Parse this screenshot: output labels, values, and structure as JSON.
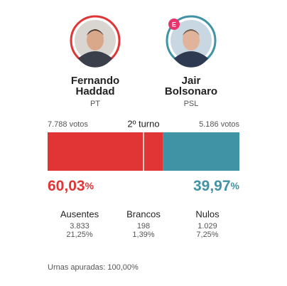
{
  "round": "2º turno",
  "share_unit": "%",
  "candidates": [
    {
      "name_lines": [
        "Fernando",
        "Haddad"
      ],
      "party": "PT",
      "votes": "7.788 votos",
      "share": 60.03,
      "share_label": "60,03",
      "color": "#e13535"
    },
    {
      "name_lines": [
        "Jair",
        "Bolsonaro"
      ],
      "party": "PSL",
      "votes": "5.186 votos",
      "share": 39.97,
      "share_label": "39,97",
      "color": "#3f93a5",
      "badge": "E"
    }
  ],
  "stats": [
    {
      "label": "Ausentes",
      "count": "3.833",
      "percent": "21,25%"
    },
    {
      "label": "Brancos",
      "count": "198",
      "percent": "1,39%"
    },
    {
      "label": "Nulos",
      "count": "1.029",
      "percent": "7,25%"
    }
  ],
  "footer": "Urnas apuradas: 100,00%"
}
